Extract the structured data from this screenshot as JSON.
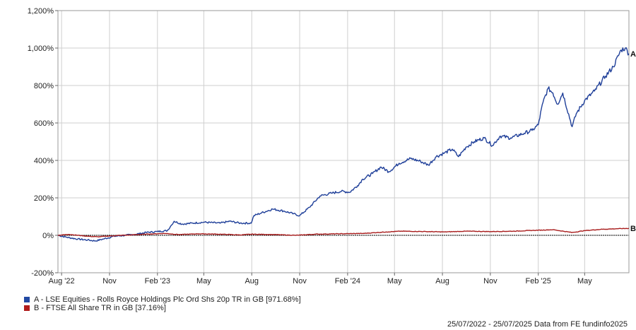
{
  "chart_data": {
    "type": "line",
    "ylim": [
      -200,
      1200
    ],
    "y_ticks": [
      -200,
      0,
      200,
      400,
      600,
      800,
      1000,
      1200
    ],
    "y_tick_labels": [
      "-200%",
      "0%",
      "200%",
      "400%",
      "600%",
      "800%",
      "1,000%",
      "1,200%"
    ],
    "x_range": [
      "2022-07-25",
      "2025-07-25"
    ],
    "x_ticks": [
      "2022-08-01",
      "2022-11-01",
      "2023-02-01",
      "2023-05-01",
      "2023-08-01",
      "2023-11-01",
      "2024-02-01",
      "2024-05-01",
      "2024-08-01",
      "2024-11-01",
      "2025-02-01",
      "2025-05-01"
    ],
    "x_tick_labels": [
      "Aug '22",
      "Nov",
      "Feb '23",
      "May",
      "Aug",
      "Nov",
      "Feb '24",
      "May",
      "Aug",
      "Nov",
      "Feb '25",
      "May"
    ],
    "grid": true,
    "series": [
      {
        "name": "A - LSE Equities - Rolls Royce Holdings Plc Ord Shs 20p TR in GB [971.68%]",
        "end_label": "A",
        "color": "#1f3f99",
        "points": [
          [
            "2022-07-25",
            0
          ],
          [
            "2022-08-10",
            -10
          ],
          [
            "2022-09-01",
            -20
          ],
          [
            "2022-09-20",
            -25
          ],
          [
            "2022-10-05",
            -30
          ],
          [
            "2022-10-20",
            -20
          ],
          [
            "2022-11-10",
            -5
          ],
          [
            "2022-12-01",
            0
          ],
          [
            "2022-12-20",
            5
          ],
          [
            "2023-01-10",
            15
          ],
          [
            "2023-02-01",
            20
          ],
          [
            "2023-02-20",
            25
          ],
          [
            "2023-02-28",
            55
          ],
          [
            "2023-03-05",
            75
          ],
          [
            "2023-03-20",
            60
          ],
          [
            "2023-04-10",
            65
          ],
          [
            "2023-05-01",
            70
          ],
          [
            "2023-06-01",
            65
          ],
          [
            "2023-06-20",
            75
          ],
          [
            "2023-07-10",
            65
          ],
          [
            "2023-07-31",
            65
          ],
          [
            "2023-08-05",
            105
          ],
          [
            "2023-08-20",
            120
          ],
          [
            "2023-09-10",
            140
          ],
          [
            "2023-10-01",
            130
          ],
          [
            "2023-10-20",
            115
          ],
          [
            "2023-11-01",
            105
          ],
          [
            "2023-11-20",
            150
          ],
          [
            "2023-12-10",
            210
          ],
          [
            "2024-01-01",
            225
          ],
          [
            "2024-01-20",
            235
          ],
          [
            "2024-02-05",
            230
          ],
          [
            "2024-02-20",
            265
          ],
          [
            "2024-03-01",
            300
          ],
          [
            "2024-03-20",
            330
          ],
          [
            "2024-04-05",
            365
          ],
          [
            "2024-04-20",
            340
          ],
          [
            "2024-05-10",
            385
          ],
          [
            "2024-06-01",
            410
          ],
          [
            "2024-06-20",
            395
          ],
          [
            "2024-07-05",
            375
          ],
          [
            "2024-07-20",
            420
          ],
          [
            "2024-08-05",
            440
          ],
          [
            "2024-08-20",
            460
          ],
          [
            "2024-09-01",
            420
          ],
          [
            "2024-09-15",
            470
          ],
          [
            "2024-10-01",
            500
          ],
          [
            "2024-10-20",
            520
          ],
          [
            "2024-11-05",
            480
          ],
          [
            "2024-11-20",
            530
          ],
          [
            "2024-12-10",
            520
          ],
          [
            "2025-01-05",
            545
          ],
          [
            "2025-01-20",
            560
          ],
          [
            "2025-02-01",
            590
          ],
          [
            "2025-02-10",
            710
          ],
          [
            "2025-02-20",
            785
          ],
          [
            "2025-03-01",
            760
          ],
          [
            "2025-03-10",
            700
          ],
          [
            "2025-03-20",
            760
          ],
          [
            "2025-04-07",
            580
          ],
          [
            "2025-04-15",
            650
          ],
          [
            "2025-05-01",
            720
          ],
          [
            "2025-05-20",
            770
          ],
          [
            "2025-06-10",
            850
          ],
          [
            "2025-06-25",
            900
          ],
          [
            "2025-07-10",
            990
          ],
          [
            "2025-07-18",
            1000
          ],
          [
            "2025-07-25",
            970
          ]
        ]
      },
      {
        "name": "B - FTSE All Share TR in GB [37.16%]",
        "end_label": "B",
        "color": "#a81c1c",
        "points": [
          [
            "2022-07-25",
            0
          ],
          [
            "2022-08-15",
            5
          ],
          [
            "2022-09-20",
            -5
          ],
          [
            "2022-10-10",
            -8
          ],
          [
            "2022-11-10",
            -2
          ],
          [
            "2022-12-10",
            2
          ],
          [
            "2023-01-10",
            6
          ],
          [
            "2023-02-15",
            10
          ],
          [
            "2023-03-15",
            4
          ],
          [
            "2023-04-20",
            8
          ],
          [
            "2023-06-01",
            6
          ],
          [
            "2023-07-10",
            2
          ],
          [
            "2023-08-01",
            6
          ],
          [
            "2023-09-10",
            4
          ],
          [
            "2023-10-25",
            0
          ],
          [
            "2023-12-01",
            6
          ],
          [
            "2024-01-15",
            8
          ],
          [
            "2024-03-01",
            10
          ],
          [
            "2024-04-15",
            18
          ],
          [
            "2024-05-15",
            22
          ],
          [
            "2024-07-01",
            20
          ],
          [
            "2024-08-05",
            18
          ],
          [
            "2024-09-15",
            22
          ],
          [
            "2024-11-01",
            20
          ],
          [
            "2024-12-15",
            22
          ],
          [
            "2025-01-20",
            26
          ],
          [
            "2025-03-01",
            30
          ],
          [
            "2025-04-07",
            15
          ],
          [
            "2025-05-01",
            25
          ],
          [
            "2025-06-01",
            32
          ],
          [
            "2025-07-01",
            35
          ],
          [
            "2025-07-25",
            37
          ]
        ]
      }
    ]
  },
  "legend": [
    {
      "color": "#2249a3",
      "label": "A - LSE Equities - Rolls Royce Holdings Plc Ord Shs 20p TR in GB [971.68%]"
    },
    {
      "color": "#b01c1c",
      "label": "B - FTSE All Share TR in GB [37.16%]"
    }
  ],
  "footer": "25/07/2022 - 25/07/2025 Data from FE fundinfo2025"
}
